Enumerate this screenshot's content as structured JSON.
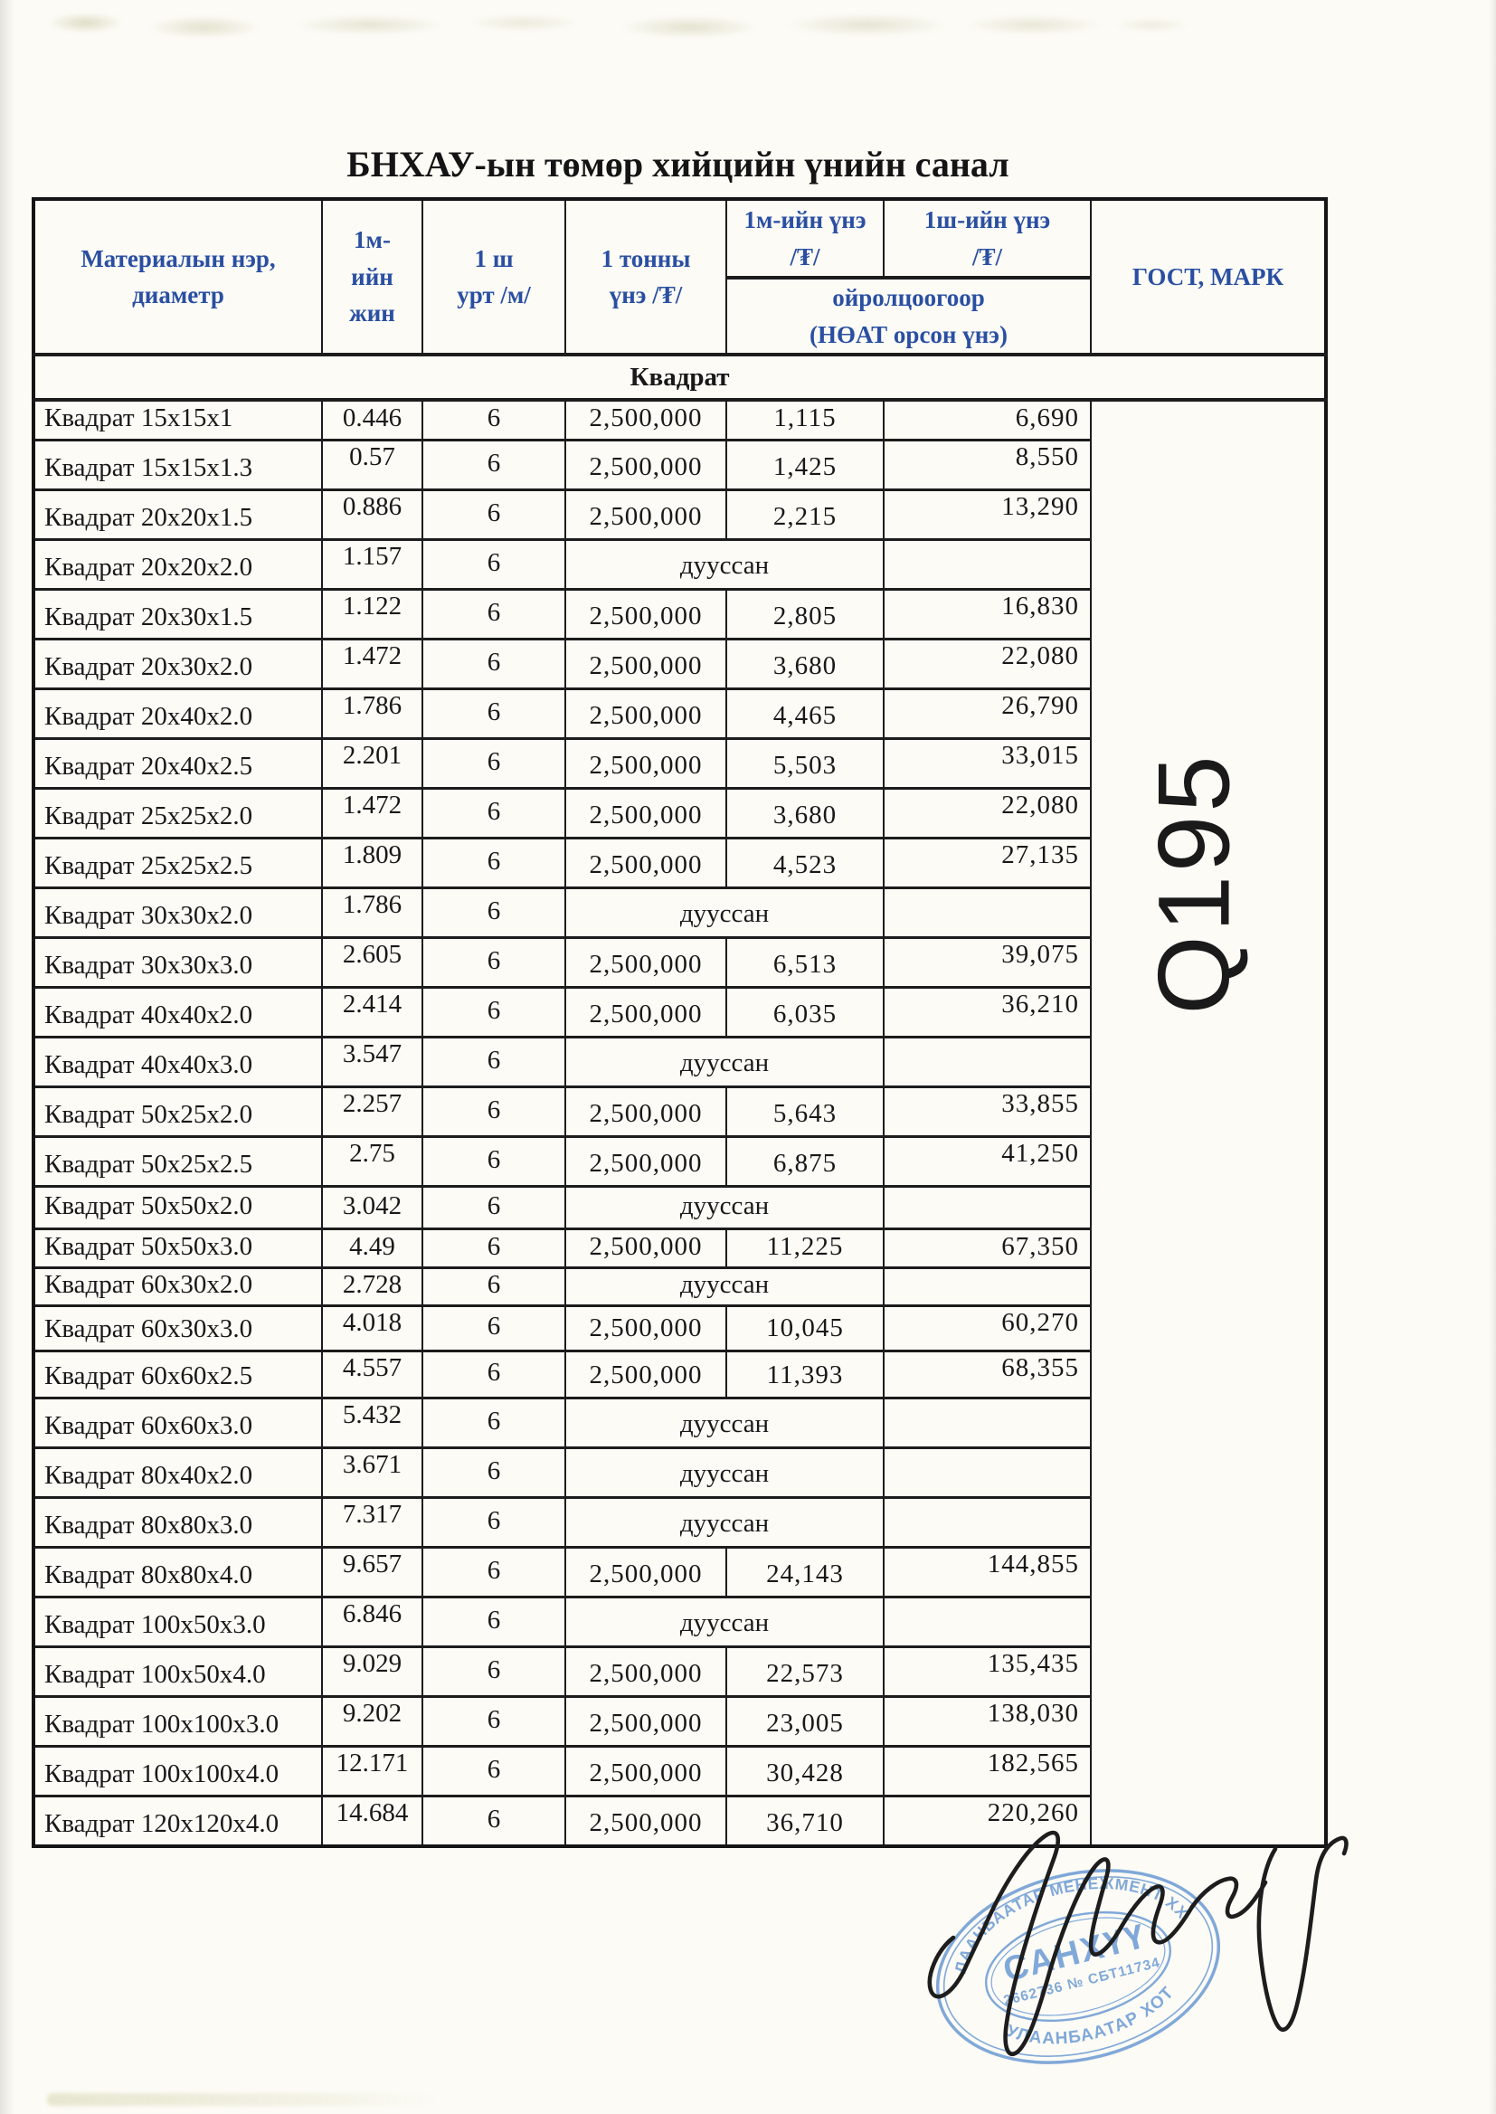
{
  "document": {
    "title": "БНХАУ-ын төмөр хийцийн үнийн санал"
  },
  "table": {
    "headers": {
      "material": "Материалын нэр,\nдиаметр",
      "weight_per_m": "1м-\nийн\nжин",
      "length_per_pc": "1 ш\nурт /м/",
      "price_per_ton": "1 тонны\nүнэ /₮/",
      "price_per_m": "1м-ийн үнэ\n/₮/",
      "price_per_pc": "1ш-ийн үнэ\n/₮/",
      "approx_note": "ойролцоогоор\n(НӨАТ орсон үнэ)",
      "gost_mark": "ГОСТ, МАРК"
    },
    "section_title": "Квадрат",
    "gost_mark_value": "Q195",
    "soldout_label": "дууссан",
    "rows": [
      {
        "name": "Квадрат 15x15x1",
        "weight": "0.446",
        "length": "6",
        "price_ton": "2,500,000",
        "price_m": "1,115",
        "price_pc": "6,690",
        "soldout": false
      },
      {
        "name": "Квадрат 15x15x1.3",
        "weight": "0.57",
        "length": "6",
        "price_ton": "2,500,000",
        "price_m": "1,425",
        "price_pc": "8,550",
        "soldout": false
      },
      {
        "name": "Квадрат 20x20x1.5",
        "weight": "0.886",
        "length": "6",
        "price_ton": "2,500,000",
        "price_m": "2,215",
        "price_pc": "13,290",
        "soldout": false
      },
      {
        "name": "Квадрат 20x20x2.0",
        "weight": "1.157",
        "length": "6",
        "price_ton": "",
        "price_m": "",
        "price_pc": "",
        "soldout": true
      },
      {
        "name": "Квадрат 20x30x1.5",
        "weight": "1.122",
        "length": "6",
        "price_ton": "2,500,000",
        "price_m": "2,805",
        "price_pc": "16,830",
        "soldout": false
      },
      {
        "name": "Квадрат 20x30x2.0",
        "weight": "1.472",
        "length": "6",
        "price_ton": "2,500,000",
        "price_m": "3,680",
        "price_pc": "22,080",
        "soldout": false
      },
      {
        "name": "Квадрат 20x40x2.0",
        "weight": "1.786",
        "length": "6",
        "price_ton": "2,500,000",
        "price_m": "4,465",
        "price_pc": "26,790",
        "soldout": false
      },
      {
        "name": "Квадрат 20x40x2.5",
        "weight": "2.201",
        "length": "6",
        "price_ton": "2,500,000",
        "price_m": "5,503",
        "price_pc": "33,015",
        "soldout": false
      },
      {
        "name": "Квадрат 25x25x2.0",
        "weight": "1.472",
        "length": "6",
        "price_ton": "2,500,000",
        "price_m": "3,680",
        "price_pc": "22,080",
        "soldout": false
      },
      {
        "name": "Квадрат 25x25x2.5",
        "weight": "1.809",
        "length": "6",
        "price_ton": "2,500,000",
        "price_m": "4,523",
        "price_pc": "27,135",
        "soldout": false
      },
      {
        "name": "Квадрат 30x30x2.0",
        "weight": "1.786",
        "length": "6",
        "price_ton": "",
        "price_m": "",
        "price_pc": "",
        "soldout": true
      },
      {
        "name": "Квадрат 30x30x3.0",
        "weight": "2.605",
        "length": "6",
        "price_ton": "2,500,000",
        "price_m": "6,513",
        "price_pc": "39,075",
        "soldout": false
      },
      {
        "name": "Квадрат 40x40x2.0",
        "weight": "2.414",
        "length": "6",
        "price_ton": "2,500,000",
        "price_m": "6,035",
        "price_pc": "36,210",
        "soldout": false
      },
      {
        "name": "Квадрат 40x40x3.0",
        "weight": "3.547",
        "length": "6",
        "price_ton": "",
        "price_m": "",
        "price_pc": "",
        "soldout": true
      },
      {
        "name": "Квадрат 50x25x2.0",
        "weight": "2.257",
        "length": "6",
        "price_ton": "2,500,000",
        "price_m": "5,643",
        "price_pc": "33,855",
        "soldout": false
      },
      {
        "name": "Квадрат 50x25x2.5",
        "weight": "2.75",
        "length": "6",
        "price_ton": "2,500,000",
        "price_m": "6,875",
        "price_pc": "41,250",
        "soldout": false
      },
      {
        "name": "Квадрат 50x50x2.0",
        "weight": "3.042",
        "length": "6",
        "price_ton": "",
        "price_m": "",
        "price_pc": "",
        "soldout": true
      },
      {
        "name": "Квадрат 50x50x3.0",
        "weight": "4.49",
        "length": "6",
        "price_ton": "2,500,000",
        "price_m": "11,225",
        "price_pc": "67,350",
        "soldout": false
      },
      {
        "name": "Квадрат 60x30x2.0",
        "weight": "2.728",
        "length": "6",
        "price_ton": "",
        "price_m": "",
        "price_pc": "",
        "soldout": true
      },
      {
        "name": "Квадрат 60x30x3.0",
        "weight": "4.018",
        "length": "6",
        "price_ton": "2,500,000",
        "price_m": "10,045",
        "price_pc": "60,270",
        "soldout": false
      },
      {
        "name": "Квадрат 60x60x2.5",
        "weight": "4.557",
        "length": "6",
        "price_ton": "2,500,000",
        "price_m": "11,393",
        "price_pc": "68,355",
        "soldout": false
      },
      {
        "name": "Квадрат 60x60x3.0",
        "weight": "5.432",
        "length": "6",
        "price_ton": "",
        "price_m": "",
        "price_pc": "",
        "soldout": true
      },
      {
        "name": "Квадрат 80x40x2.0",
        "weight": "3.671",
        "length": "6",
        "price_ton": "",
        "price_m": "",
        "price_pc": "",
        "soldout": true
      },
      {
        "name": "Квадрат 80x80x3.0",
        "weight": "7.317",
        "length": "6",
        "price_ton": "",
        "price_m": "",
        "price_pc": "",
        "soldout": true
      },
      {
        "name": "Квадрат 80x80x4.0",
        "weight": "9.657",
        "length": "6",
        "price_ton": "2,500,000",
        "price_m": "24,143",
        "price_pc": "144,855",
        "soldout": false
      },
      {
        "name": "Квадрат 100x50x3.0",
        "weight": "6.846",
        "length": "6",
        "price_ton": "",
        "price_m": "",
        "price_pc": "",
        "soldout": true
      },
      {
        "name": "Квадрат 100x50x4.0",
        "weight": "9.029",
        "length": "6",
        "price_ton": "2,500,000",
        "price_m": "22,573",
        "price_pc": "135,435",
        "soldout": false
      },
      {
        "name": "Квадрат 100x100x3.0",
        "weight": "9.202",
        "length": "6",
        "price_ton": "2,500,000",
        "price_m": "23,005",
        "price_pc": "138,030",
        "soldout": false
      },
      {
        "name": "Квадрат 100x100x4.0",
        "weight": "12.171",
        "length": "6",
        "price_ton": "2,500,000",
        "price_m": "30,428",
        "price_pc": "182,565",
        "soldout": false
      },
      {
        "name": "Квадрат 120x120x4.0",
        "weight": "14.684",
        "length": "6",
        "price_ton": "2,500,000",
        "price_m": "36,710",
        "price_pc": "220,260",
        "soldout": false
      }
    ]
  },
  "stamp": {
    "arc_top": "УЛААНБААТАР МЕНЕЖМЕНТ ХХК",
    "center": "САНХҮҮ",
    "reg_line": "2662736 № СБТ11734",
    "arc_bottom": "УЛААНБААТАР ХОТ",
    "ink_color": "#6697d2"
  },
  "colors": {
    "header_text": "#2a4fa2",
    "body_text": "#181818",
    "border": "#1c1c1c",
    "paper": "#fcfbf6"
  }
}
